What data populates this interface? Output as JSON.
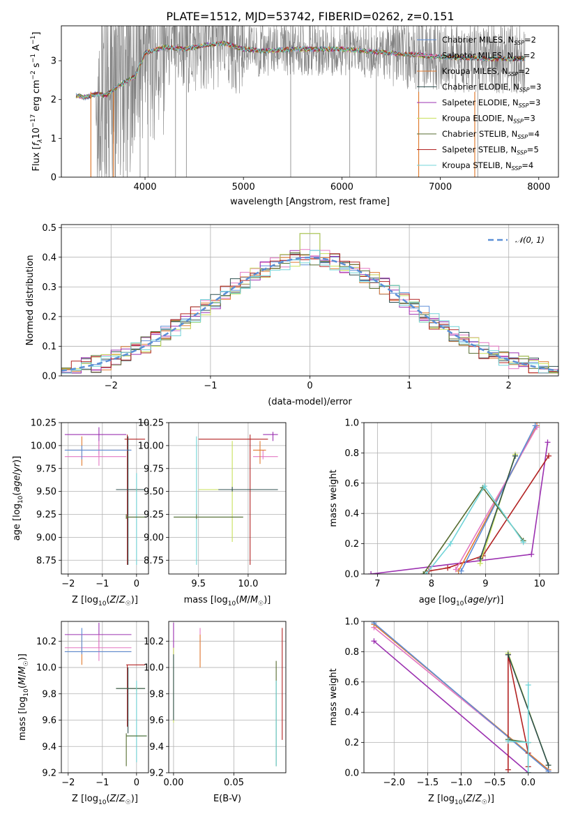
{
  "figure": {
    "title": "PLATE=1512, MJD=53742, FIBERID=0262, z=0.151"
  },
  "colors": {
    "Chabrier MILES": "#5c8dd6",
    "Salpeter MILES": "#e377c2",
    "Kroupa MILES": "#e07b30",
    "Chabrier ELODIE": "#2f4f4f",
    "Salpeter ELODIE": "#9b30b0",
    "Kroupa ELODIE": "#c8e05a",
    "Chabrier STELIB": "#556b2f",
    "Salpeter STELIB": "#b22222",
    "Kroupa STELIB": "#70d4d8",
    "data": "#808080",
    "normal": "#5b8fd6"
  },
  "chart_data": [
    {
      "id": "spectrum",
      "type": "line",
      "xlabel": "wavelength [Angstrom, rest frame]",
      "ylabel": "Flux [f_λ 10^-17 erg cm^-2 s^-1 A^-1]",
      "ylabel_parts": {
        "a": "Flux [",
        "b": "f",
        "c": "λ",
        "d": "10",
        "e": "−17",
        "f": " erg cm",
        "g": "−2",
        "h": " s",
        "i": "−1",
        "j": " A",
        "k": "−1",
        "l": "]"
      },
      "xlim": [
        3150,
        8200
      ],
      "ylim": [
        0,
        3.9
      ],
      "xticks": [
        4000,
        5000,
        6000,
        7000,
        8000
      ],
      "yticks": [
        0,
        1,
        2,
        3
      ],
      "legend_position": "upper right",
      "legend": [
        {
          "name": "Chabrier MILES",
          "n": "2"
        },
        {
          "name": "Salpeter MILES",
          "n": "2"
        },
        {
          "name": "Kroupa MILES",
          "n": "2"
        },
        {
          "name": "Chabrier ELODIE",
          "n": "3"
        },
        {
          "name": "Salpeter ELODIE",
          "n": "3"
        },
        {
          "name": "Kroupa ELODIE",
          "n": "3"
        },
        {
          "name": "Chabrier STELIB",
          "n": "4"
        },
        {
          "name": "Salpeter STELIB",
          "n": "5"
        },
        {
          "name": "Kroupa STELIB",
          "n": "4"
        }
      ],
      "legend_suffix": {
        "pre": "N",
        "sub": "SSP",
        "eq": "="
      },
      "model_continuum": [
        [
          3300,
          2.1
        ],
        [
          3400,
          2.05
        ],
        [
          3500,
          2.15
        ],
        [
          3600,
          2.1
        ],
        [
          3700,
          2.3
        ],
        [
          3800,
          2.45
        ],
        [
          3900,
          2.6
        ],
        [
          4000,
          3.2
        ],
        [
          4200,
          3.35
        ],
        [
          4400,
          3.3
        ],
        [
          4600,
          3.4
        ],
        [
          4800,
          3.45
        ],
        [
          5000,
          3.3
        ],
        [
          5200,
          3.25
        ],
        [
          5500,
          3.3
        ],
        [
          6000,
          3.3
        ],
        [
          6500,
          3.2
        ],
        [
          7000,
          3.1
        ],
        [
          7500,
          3.05
        ],
        [
          7860,
          3.05
        ]
      ],
      "gaps": [
        [
          3450,
          3500
        ],
        [
          3680,
          3700
        ],
        [
          6780,
          6800
        ],
        [
          7350,
          7420
        ]
      ]
    },
    {
      "id": "residuals",
      "type": "histogram",
      "xlabel": "(data-model)/error",
      "ylabel": "Normed distribution",
      "xlim": [
        -2.5,
        2.5
      ],
      "ylim": [
        0,
        0.51
      ],
      "xticks": [
        -2,
        -1,
        0,
        1,
        2
      ],
      "yticks": [
        0.0,
        0.1,
        0.2,
        0.3,
        0.4,
        0.5
      ],
      "ytick_labels": [
        "0.0",
        "0.1",
        "0.2",
        "0.3",
        "0.4",
        "0.5"
      ],
      "legend": [
        "𝒩(0, 1)"
      ],
      "legend_position": "upper right",
      "bin_width": 0.1,
      "series_order": [
        "Chabrier MILES",
        "Salpeter MILES",
        "Kroupa MILES",
        "Chabrier ELODIE",
        "Salpeter ELODIE",
        "Kroupa ELODIE",
        "Chabrier STELIB",
        "Salpeter STELIB",
        "Kroupa STELIB"
      ]
    },
    {
      "id": "age-vs-Z",
      "type": "scatter",
      "xlabel": "Z [log10(Z/Z☉)]",
      "ylabel": "age [log10(age/yr)]",
      "xlim": [
        -2.2,
        0.35
      ],
      "ylim": [
        8.6,
        10.25
      ],
      "xticks": [
        -2,
        -1,
        0
      ],
      "xtick_labels": [
        "−2",
        "−1",
        "0"
      ],
      "yticks": [
        8.75,
        9.0,
        9.25,
        9.5,
        9.75,
        10.0,
        10.25
      ],
      "ytick_labels": [
        "8.75",
        "9.00",
        "9.25",
        "9.50",
        "9.75",
        "10.00",
        "10.25"
      ],
      "points": [
        {
          "s": "Salpeter ELODIE",
          "x": -1.1,
          "y": 10.12,
          "xe": [
            -2.1,
            -0.3
          ],
          "ye": [
            9.9,
            10.2
          ]
        },
        {
          "s": "Salpeter STELIB",
          "x": -0.27,
          "y": 10.07,
          "xe": [
            -0.35,
            0.25
          ],
          "ye": [
            8.7,
            10.12
          ]
        },
        {
          "s": "Kroupa MILES",
          "x": -1.6,
          "y": 9.95,
          "xe": [
            -2.1,
            -0.15
          ],
          "ye": [
            9.78,
            10.1
          ]
        },
        {
          "s": "Salpeter MILES",
          "x": -1.1,
          "y": 9.88,
          "xe": [
            -2.1,
            -0.3
          ],
          "ye": [
            9.78,
            10.05
          ]
        },
        {
          "s": "Chabrier MILES",
          "x": -1.6,
          "y": 9.95,
          "xe": [
            -2.1,
            -0.15
          ],
          "ye": [
            9.85,
            10.0
          ]
        },
        {
          "s": "Kroupa ELODIE",
          "x": 0.0,
          "y": 9.52,
          "xe": [
            -0.6,
            0.25
          ],
          "ye": [
            9.5,
            9.54
          ]
        },
        {
          "s": "Chabrier ELODIE",
          "x": -0.25,
          "y": 9.52,
          "xe": [
            -0.6,
            0.25
          ],
          "ye": [
            8.7,
            10.1
          ]
        },
        {
          "s": "Kroupa STELIB",
          "x": 0.0,
          "y": 9.22,
          "xe": [
            -0.3,
            0.3
          ],
          "ye": [
            8.7,
            9.7
          ]
        },
        {
          "s": "Chabrier STELIB",
          "x": -0.3,
          "y": 9.22,
          "xe": [
            -0.3,
            0.3
          ],
          "ye": [
            9.2,
            9.25
          ]
        }
      ]
    },
    {
      "id": "age-vs-mass",
      "type": "scatter",
      "xlabel": "mass [log10(M/M☉)]",
      "ylabel": "",
      "xlim": [
        9.2,
        10.38
      ],
      "ylim": [
        8.6,
        10.25
      ],
      "xticks": [
        9.5,
        10.0
      ],
      "xtick_labels": [
        "9.5",
        "10.0"
      ],
      "yticks": [
        8.75,
        9.0,
        9.25,
        9.5,
        9.75,
        10.0,
        10.25
      ],
      "ytick_labels": [
        "8.75",
        "9.00",
        "9.25",
        "9.50",
        "9.75",
        "10.00",
        "10.25"
      ],
      "points": [
        {
          "s": "Salpeter ELODIE",
          "x": 10.25,
          "y": 10.12,
          "xe": [
            10.15,
            10.3
          ],
          "ye": [
            10.05,
            10.15
          ]
        },
        {
          "s": "Salpeter STELIB",
          "x": 10.02,
          "y": 10.07,
          "xe": [
            9.5,
            10.2
          ],
          "ye": [
            8.7,
            10.12
          ]
        },
        {
          "s": "Salpeter MILES",
          "x": 10.15,
          "y": 9.88,
          "xe": [
            10.05,
            10.3
          ],
          "ye": [
            9.85,
            9.95
          ]
        },
        {
          "s": "Kroupa MILES",
          "x": 10.12,
          "y": 9.95,
          "xe": [
            10.05,
            10.18
          ],
          "ye": [
            9.8,
            10.05
          ]
        },
        {
          "s": "Kroupa ELODIE",
          "x": 9.84,
          "y": 9.52,
          "xe": [
            9.5,
            10.2
          ],
          "ye": [
            8.95,
            10.05
          ]
        },
        {
          "s": "Chabrier ELODIE",
          "x": 9.84,
          "y": 9.52,
          "xe": [
            9.7,
            10.3
          ],
          "ye": [
            9.5,
            9.55
          ]
        },
        {
          "s": "Kroupa STELIB",
          "x": 9.48,
          "y": 9.22,
          "xe": [
            9.25,
            9.95
          ],
          "ye": [
            8.7,
            10.1
          ]
        },
        {
          "s": "Chabrier STELIB",
          "x": 9.48,
          "y": 9.22,
          "xe": [
            9.25,
            9.95
          ],
          "ye": [
            9.2,
            9.25
          ]
        }
      ]
    },
    {
      "id": "mass-weight-vs-age",
      "type": "line",
      "xlabel": "age [log10(age/yr)]",
      "ylabel": "mass weight",
      "xlim": [
        6.75,
        10.35
      ],
      "ylim": [
        0,
        1.0
      ],
      "xticks": [
        7,
        8,
        9,
        10
      ],
      "yticks": [
        0.0,
        0.2,
        0.4,
        0.6,
        0.8,
        1.0
      ],
      "ytick_labels": [
        "0.0",
        "0.2",
        "0.4",
        "0.6",
        "0.8",
        "1.0"
      ],
      "series": [
        {
          "name": "Salpeter ELODIE",
          "x": [
            6.88,
            9.85,
            10.15
          ],
          "y": [
            0.0,
            0.13,
            0.87
          ]
        },
        {
          "name": "Salpeter STELIB",
          "x": [
            7.95,
            8.3,
            8.95,
            10.17
          ],
          "y": [
            0.02,
            0.04,
            0.12,
            0.78
          ]
        },
        {
          "name": "Kroupa MILES",
          "x": [
            8.5,
            9.95
          ],
          "y": [
            0.02,
            0.98
          ]
        },
        {
          "name": "Salpeter MILES",
          "x": [
            8.45,
            9.95
          ],
          "y": [
            0.03,
            0.97
          ]
        },
        {
          "name": "Chabrier MILES",
          "x": [
            8.55,
            9.92
          ],
          "y": [
            0.02,
            0.98
          ]
        },
        {
          "name": "Kroupa ELODIE",
          "x": [
            8.9,
            9.55
          ],
          "y": [
            0.07,
            0.79
          ]
        },
        {
          "name": "Chabrier ELODIE",
          "x": [
            8.9,
            9.55
          ],
          "y": [
            0.1,
            0.78
          ]
        },
        {
          "name": "Chabrier STELIB",
          "x": [
            7.85,
            8.95,
            9.7
          ],
          "y": [
            0.0,
            0.57,
            0.22
          ]
        },
        {
          "name": "Kroupa STELIB",
          "x": [
            7.9,
            8.35,
            8.98,
            9.7
          ],
          "y": [
            0.0,
            0.2,
            0.58,
            0.21
          ]
        }
      ]
    },
    {
      "id": "mass-vs-Z",
      "type": "scatter",
      "xlabel": "Z [log10(Z/Z☉)]",
      "ylabel": "mass [log10(M/M☉)]",
      "xlim": [
        -2.2,
        0.35
      ],
      "ylim": [
        9.2,
        10.35
      ],
      "xticks": [
        -2,
        -1,
        0
      ],
      "xtick_labels": [
        "−2",
        "−1",
        "0"
      ],
      "yticks": [
        9.2,
        9.4,
        9.6,
        9.8,
        10.0,
        10.2
      ],
      "ytick_labels": [
        "9.2",
        "9.4",
        "9.6",
        "9.8",
        "10.0",
        "10.2"
      ],
      "points": [
        {
          "s": "Salpeter ELODIE",
          "x": -1.1,
          "y": 10.25,
          "xe": [
            -2.1,
            -0.15
          ],
          "ye": [
            10.15,
            10.34
          ]
        },
        {
          "s": "Salpeter MILES",
          "x": -1.1,
          "y": 10.15,
          "xe": [
            -2.1,
            -0.15
          ],
          "ye": [
            10.05,
            10.25
          ]
        },
        {
          "s": "Kroupa MILES",
          "x": -1.6,
          "y": 10.12,
          "xe": [
            -2.1,
            -0.15
          ],
          "ye": [
            10.02,
            10.25
          ]
        },
        {
          "s": "Chabrier MILES",
          "x": -1.6,
          "y": 10.12,
          "xe": [
            -2.1,
            -0.15
          ],
          "ye": [
            10.1,
            10.3
          ]
        },
        {
          "s": "Salpeter STELIB",
          "x": -0.27,
          "y": 10.02,
          "xe": [
            -0.3,
            0.25
          ],
          "ye": [
            9.55,
            10.02
          ]
        },
        {
          "s": "Kroupa ELODIE",
          "x": 0.0,
          "y": 9.84,
          "xe": [
            -0.6,
            0.25
          ],
          "ye": [
            9.82,
            9.86
          ]
        },
        {
          "s": "Chabrier ELODIE",
          "x": -0.25,
          "y": 9.84,
          "xe": [
            -0.6,
            0.25
          ],
          "ye": [
            9.5,
            10.0
          ]
        },
        {
          "s": "Kroupa STELIB",
          "x": 0.0,
          "y": 9.48,
          "xe": [
            -0.3,
            0.3
          ],
          "ye": [
            9.28,
            9.9
          ]
        },
        {
          "s": "Chabrier STELIB",
          "x": -0.3,
          "y": 9.48,
          "xe": [
            -0.3,
            0.3
          ],
          "ye": [
            9.25,
            9.5
          ]
        }
      ]
    },
    {
      "id": "mass-vs-ebv",
      "type": "scatter",
      "xlabel": "E(B-V)",
      "ylabel": "",
      "xlim": [
        -0.004,
        0.093
      ],
      "ylim": [
        9.2,
        10.35
      ],
      "xticks": [
        0.0,
        0.05
      ],
      "xtick_labels": [
        "0.00",
        "0.05"
      ],
      "yticks": [
        9.2,
        9.4,
        9.6,
        9.8,
        10.0,
        10.2
      ],
      "ytick_labels": [
        "9.2",
        "9.4",
        "9.6",
        "9.8",
        "10.0",
        "10.2"
      ],
      "points": [
        {
          "s": "Salpeter ELODIE",
          "x": 0.0,
          "y": 10.25,
          "ye": [
            10.1,
            10.34
          ]
        },
        {
          "s": "Kroupa ELODIE",
          "x": 0.0,
          "y": 9.84,
          "ye": [
            9.58,
            10.15
          ]
        },
        {
          "s": "Salpeter MILES",
          "x": 0.022,
          "y": 10.15,
          "ye": [
            10.05,
            10.3
          ]
        },
        {
          "s": "Kroupa MILES",
          "x": 0.022,
          "y": 10.12,
          "ye": [
            10.0,
            10.25
          ]
        },
        {
          "s": "Chabrier ELODIE",
          "x": 0.0,
          "y": 9.84,
          "ye": [
            9.6,
            10.1
          ]
        },
        {
          "s": "Chabrier STELIB",
          "x": 0.085,
          "y": 9.48,
          "ye": [
            9.25,
            10.05
          ]
        },
        {
          "s": "Kroupa STELIB",
          "x": 0.085,
          "y": 9.48,
          "ye": [
            9.25,
            9.9
          ]
        },
        {
          "s": "Salpeter STELIB",
          "x": 0.09,
          "y": 10.02,
          "ye": [
            9.45,
            10.3
          ]
        }
      ]
    },
    {
      "id": "mass-weight-vs-Z",
      "type": "line",
      "xlabel": "Z [log10(Z/Z☉)]",
      "ylabel": "mass weight",
      "xlim": [
        -2.45,
        0.45
      ],
      "ylim": [
        0,
        1.0
      ],
      "xticks": [
        -2.0,
        -1.5,
        -1.0,
        -0.5,
        0.0
      ],
      "xtick_labels": [
        "−2.0",
        "−1.5",
        "−1.0",
        "−0.5",
        "0.0"
      ],
      "yticks": [
        0.0,
        0.2,
        0.4,
        0.6,
        0.8,
        1.0
      ],
      "ytick_labels": [
        "0.0",
        "0.2",
        "0.4",
        "0.6",
        "0.8",
        "1.0"
      ],
      "series": [
        {
          "name": "Salpeter ELODIE",
          "x": [
            -2.3,
            0.0
          ],
          "y": [
            0.87,
            0.0
          ]
        },
        {
          "name": "Salpeter MILES",
          "x": [
            -2.3,
            0.3
          ],
          "y": [
            0.96,
            0.02
          ]
        },
        {
          "name": "Kroupa MILES",
          "x": [
            -2.3,
            0.3
          ],
          "y": [
            0.98,
            0.02
          ]
        },
        {
          "name": "Chabrier MILES",
          "x": [
            -2.3,
            0.3
          ],
          "y": [
            0.99,
            0.01
          ]
        },
        {
          "name": "Salpeter STELIB",
          "x": [
            -0.3,
            -0.3,
            0.0,
            0.0
          ],
          "y": [
            0.02,
            0.78,
            0.13,
            0.04
          ]
        },
        {
          "name": "Kroupa ELODIE",
          "x": [
            -0.3,
            0.3
          ],
          "y": [
            0.79,
            0.05
          ]
        },
        {
          "name": "Chabrier ELODIE",
          "x": [
            -0.3,
            0.3
          ],
          "y": [
            0.78,
            0.05
          ]
        },
        {
          "name": "Chabrier STELIB",
          "x": [
            -0.3,
            0.0,
            0.0
          ],
          "y": [
            0.22,
            0.2,
            0.0
          ]
        },
        {
          "name": "Kroupa STELIB",
          "x": [
            -0.3,
            0.0,
            0.0,
            0.0
          ],
          "y": [
            0.21,
            0.2,
            0.58,
            0.0
          ]
        }
      ]
    }
  ]
}
